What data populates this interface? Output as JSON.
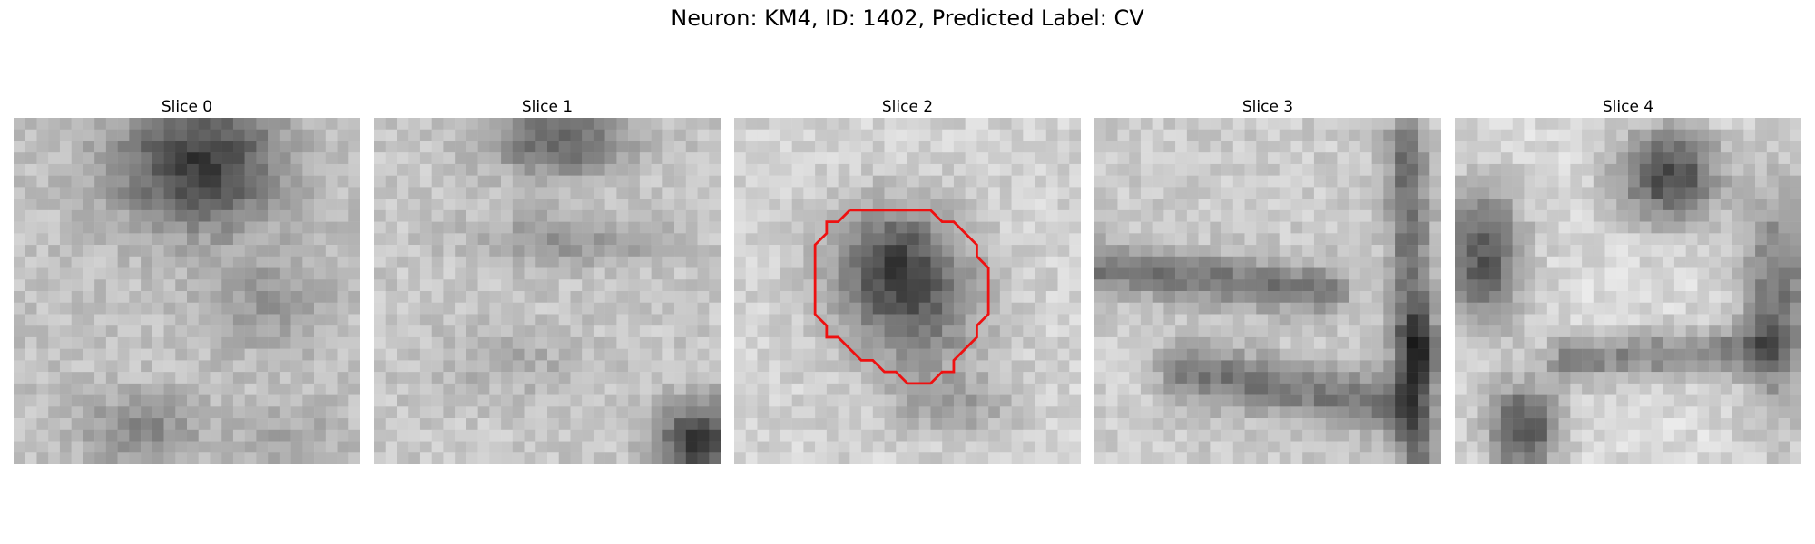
{
  "figure": {
    "title": "Neuron: KM4, ID: 1402, Predicted Label: CV"
  },
  "slices": [
    {
      "label": "Slice 0",
      "has_contour": false
    },
    {
      "label": "Slice 1",
      "has_contour": false
    },
    {
      "label": "Slice 2",
      "has_contour": true
    },
    {
      "label": "Slice 3",
      "has_contour": false
    },
    {
      "label": "Slice 4",
      "has_contour": false
    }
  ],
  "colors": {
    "contour": "#ee1111",
    "background": "#ffffff"
  },
  "colormap": "grayscale"
}
